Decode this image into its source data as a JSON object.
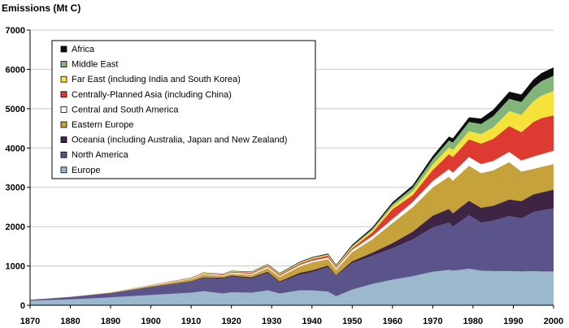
{
  "chart_data": {
    "type": "area",
    "stacked": true,
    "title": "",
    "xlabel": "",
    "ylabel": "Emissions (Mt C)",
    "xlim": [
      1870,
      2000
    ],
    "ylim": [
      0,
      7000
    ],
    "xticks": [
      1870,
      1880,
      1890,
      1900,
      1910,
      1920,
      1930,
      1940,
      1950,
      1960,
      1970,
      1980,
      1990,
      2000
    ],
    "yticks": [
      0,
      1000,
      2000,
      3000,
      4000,
      5000,
      6000,
      7000
    ],
    "grid": "horizontal",
    "legend_position": "top-left",
    "legend_order": [
      "Africa",
      "Middle East",
      "Far East (including India and South Korea)",
      "Centrally-Planned Asia (including China)",
      "Central and South America",
      "Eastern Europe",
      "Oceania (including Australia, Japan and New Zealand)",
      "North America",
      "Europe"
    ],
    "x": [
      1870,
      1880,
      1890,
      1900,
      1910,
      1913,
      1918,
      1920,
      1925,
      1929,
      1932,
      1937,
      1940,
      1944,
      1946,
      1950,
      1955,
      1960,
      1965,
      1970,
      1974,
      1975,
      1979,
      1982,
      1985,
      1989,
      1992,
      1995,
      1997,
      2000
    ],
    "series": [
      {
        "name": "Europe",
        "color": "#9bb8cc",
        "values": [
          115,
          150,
          200,
          260,
          320,
          360,
          300,
          330,
          320,
          380,
          300,
          380,
          380,
          350,
          230,
          400,
          540,
          650,
          740,
          850,
          900,
          880,
          930,
          880,
          870,
          870,
          860,
          870,
          860,
          860
        ]
      },
      {
        "name": "North America",
        "color": "#5a548a",
        "values": [
          25,
          60,
          110,
          200,
          280,
          330,
          380,
          400,
          360,
          440,
          280,
          400,
          460,
          620,
          520,
          670,
          720,
          800,
          930,
          1130,
          1200,
          1120,
          1360,
          1220,
          1280,
          1400,
          1350,
          1500,
          1550,
          1600
        ]
      },
      {
        "name": "Oceania (including Australia, Japan and New Zealand)",
        "color": "#3e2546",
        "values": [
          0,
          2,
          5,
          10,
          15,
          20,
          25,
          25,
          30,
          35,
          30,
          45,
          50,
          40,
          20,
          50,
          80,
          130,
          200,
          300,
          350,
          340,
          370,
          380,
          380,
          420,
          440,
          450,
          460,
          480
        ]
      },
      {
        "name": "Eastern Europe",
        "color": "#c6a33a",
        "values": [
          0,
          5,
          10,
          25,
          50,
          70,
          40,
          50,
          60,
          90,
          110,
          160,
          200,
          160,
          130,
          230,
          340,
          510,
          620,
          720,
          820,
          830,
          890,
          880,
          900,
          950,
          750,
          650,
          650,
          650
        ]
      },
      {
        "name": "Central and South America",
        "color": "#ffffff",
        "values": [
          0,
          2,
          5,
          10,
          15,
          20,
          20,
          25,
          30,
          35,
          30,
          40,
          40,
          45,
          45,
          60,
          80,
          100,
          130,
          160,
          190,
          200,
          220,
          230,
          240,
          260,
          280,
          310,
          320,
          340
        ]
      },
      {
        "name": "Centrally-Planned Asia (including China)",
        "color": "#dd3a32",
        "values": [
          0,
          0,
          0,
          5,
          10,
          15,
          15,
          20,
          25,
          30,
          30,
          35,
          40,
          45,
          30,
          40,
          90,
          250,
          180,
          280,
          380,
          400,
          450,
          520,
          560,
          660,
          720,
          880,
          920,
          900
        ]
      },
      {
        "name": "Far East (including India and South Korea)",
        "color": "#f5e23a",
        "values": [
          0,
          0,
          2,
          5,
          8,
          10,
          12,
          14,
          16,
          18,
          18,
          20,
          22,
          20,
          18,
          30,
          50,
          70,
          100,
          140,
          170,
          180,
          210,
          240,
          290,
          380,
          440,
          530,
          570,
          620
        ]
      },
      {
        "name": "Middle East",
        "color": "#82b57a",
        "values": [
          0,
          0,
          0,
          0,
          2,
          3,
          4,
          5,
          6,
          8,
          9,
          12,
          15,
          18,
          20,
          30,
          40,
          60,
          90,
          130,
          180,
          190,
          230,
          260,
          290,
          310,
          330,
          350,
          370,
          390
        ]
      },
      {
        "name": "Africa",
        "color": "#0d0d0d",
        "values": [
          0,
          0,
          0,
          2,
          5,
          6,
          7,
          8,
          10,
          12,
          12,
          15,
          18,
          20,
          20,
          30,
          40,
          50,
          60,
          90,
          100,
          105,
          120,
          140,
          160,
          180,
          190,
          200,
          205,
          210
        ]
      }
    ]
  }
}
